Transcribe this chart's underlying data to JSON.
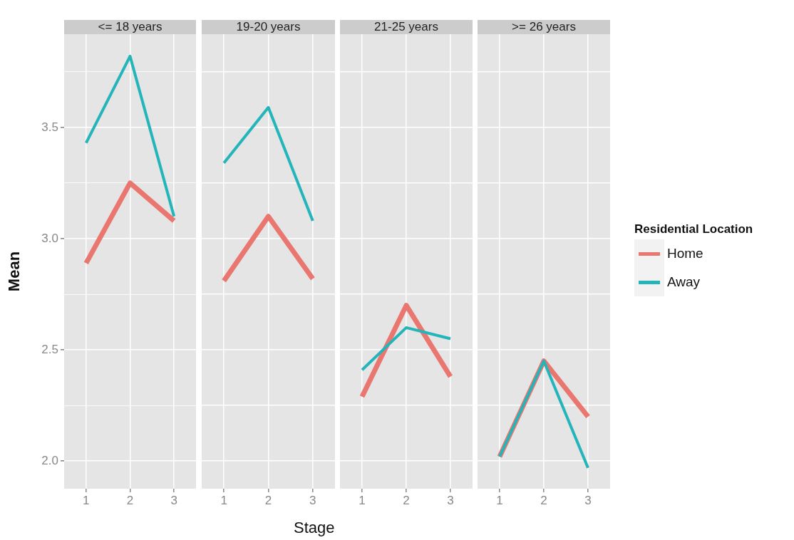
{
  "chart_data": [
    {
      "type": "line",
      "title": "<= 18 years",
      "ylabel": "Mean",
      "categories": [
        "1",
        "2",
        "3"
      ],
      "grid": true,
      "tick_labels": true,
      "ylim": [
        1.876,
        3.919
      ],
      "legend": "right",
      "legend_title": "Residential Location",
      "yticks": [
        {
          "value": 2,
          "label": "2.0"
        },
        {
          "value": 2.25,
          "label": null
        },
        {
          "value": 2.5,
          "label": "2.5"
        },
        {
          "value": 2.75,
          "label": null
        },
        {
          "value": 3,
          "label": "3.0"
        },
        {
          "value": 3.25,
          "label": null
        },
        {
          "value": 3.5,
          "label": "3.5"
        },
        {
          "value": 3.75,
          "label": null
        }
      ],
      "series": [
        {
          "name": "Home",
          "color": "#e9766f",
          "values": [
            2.89,
            3.25,
            3.08
          ]
        },
        {
          "name": "Away",
          "color": "#23b5b9",
          "values": [
            3.43,
            3.82,
            3.1
          ]
        }
      ]
    },
    {
      "type": "line",
      "title": "19-20 years",
      "xlabel": "Stage",
      "categories": [
        "1",
        "2",
        "3"
      ],
      "grid": true,
      "tick_labels": "x",
      "ylim": [
        1.876,
        3.919
      ],
      "yticks": [
        2,
        2.25,
        2.5,
        2.75,
        3,
        3.25,
        3.5,
        3.75
      ],
      "series": [
        {
          "color": "#e9766f",
          "values": [
            2.81,
            3.1,
            2.82
          ]
        },
        {
          "color": "#23b5b9",
          "values": [
            3.34,
            3.59,
            3.08
          ]
        }
      ]
    },
    {
      "type": "line",
      "title": "21-25 years",
      "categories": [
        "1",
        "2",
        "3"
      ],
      "grid": true,
      "tick_labels": "x",
      "ylim": [
        1.876,
        3.919
      ],
      "yticks": [
        2,
        2.25,
        2.5,
        2.75,
        3,
        3.25,
        3.5,
        3.75
      ],
      "series": [
        {
          "color": "#e9766f",
          "values": [
            2.29,
            2.7,
            2.38
          ]
        },
        {
          "color": "#23b5b9",
          "values": [
            2.41,
            2.6,
            2.55
          ]
        }
      ]
    },
    {
      "type": "line",
      "title": ">= 26 years",
      "categories": [
        "1",
        "2",
        "3"
      ],
      "grid": true,
      "tick_labels": "x",
      "ylim": [
        1.876,
        3.919
      ],
      "yticks": [
        2,
        2.25,
        2.5,
        2.75,
        3,
        3.25,
        3.5,
        3.75
      ],
      "series": [
        {
          "color": "#e9766f",
          "values": [
            2.02,
            2.45,
            2.2
          ]
        },
        {
          "color": "#23b5b9",
          "values": [
            2.02,
            2.45,
            1.97
          ]
        }
      ]
    }
  ]
}
